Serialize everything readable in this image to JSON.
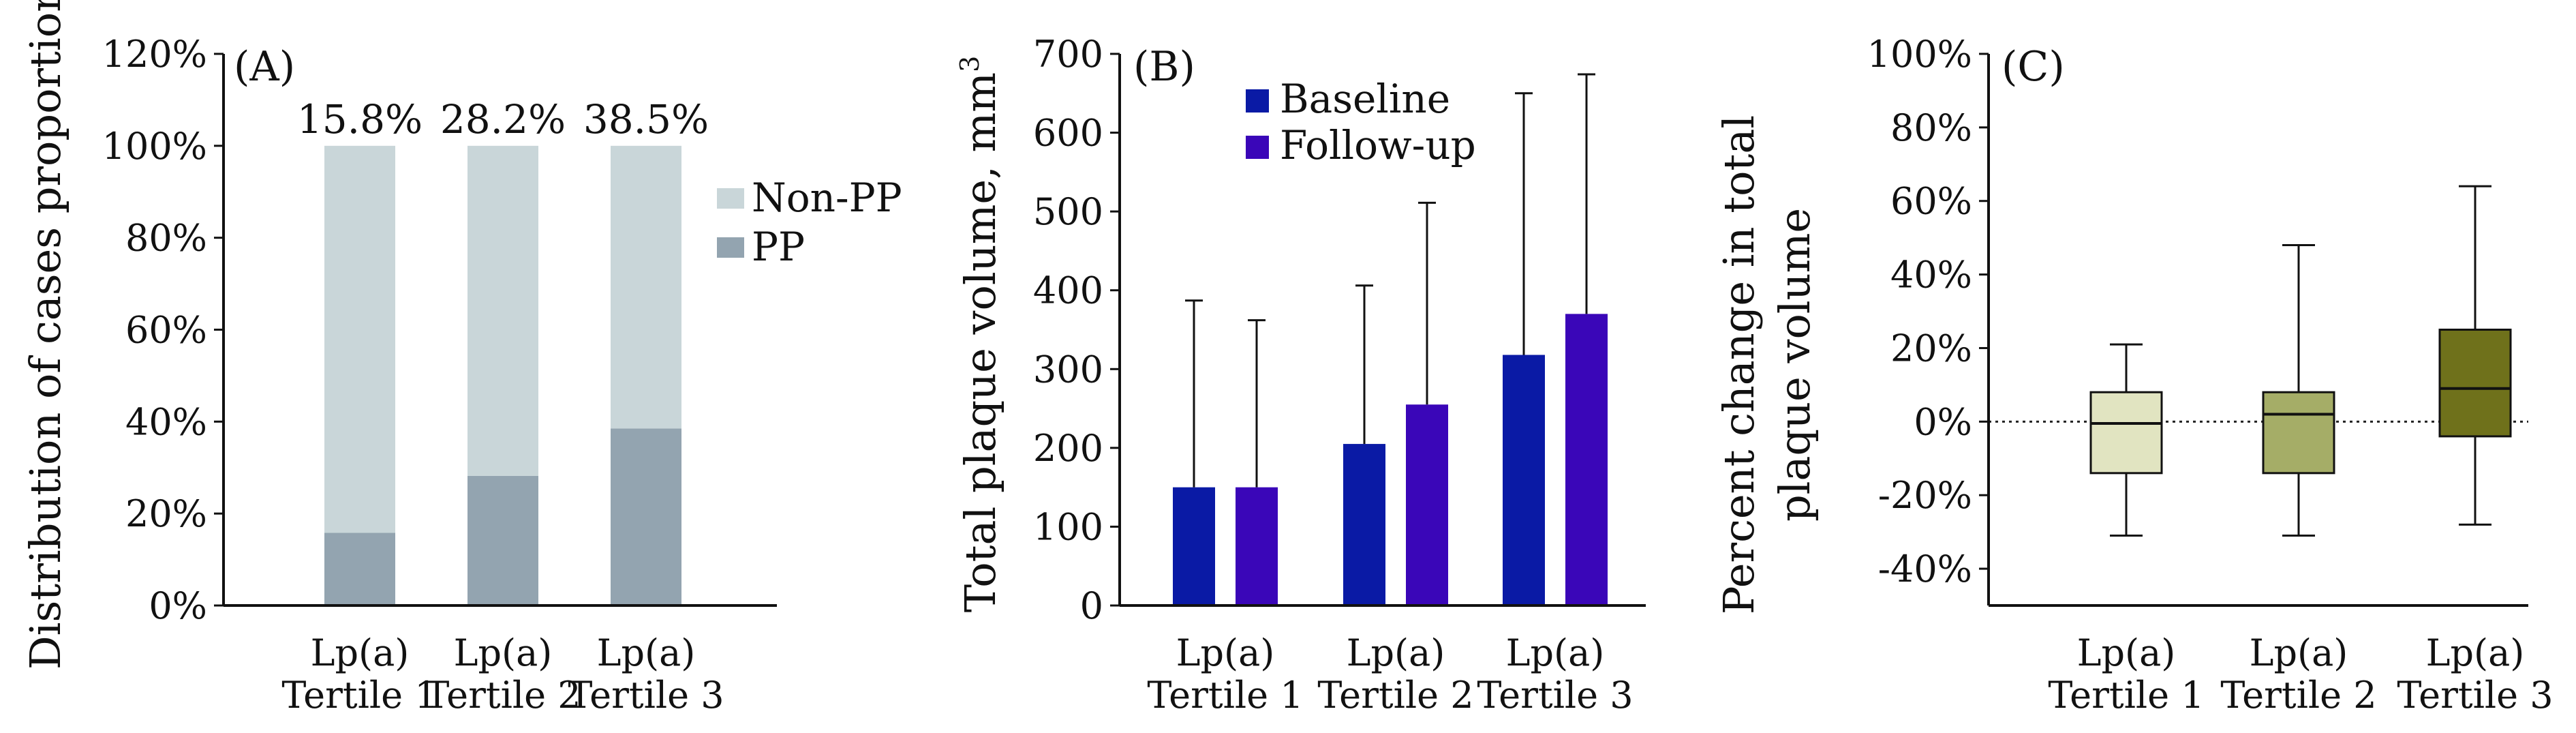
{
  "figure": {
    "panels": [
      {
        "id": "A",
        "tag": "(A)",
        "chart_data": {
          "type": "bar",
          "stacked": true,
          "ylabel": "Distribution of cases proportion",
          "ylim": [
            0,
            120
          ],
          "yticks": [
            "0%",
            "20%",
            "40%",
            "60%",
            "80%",
            "100%",
            "120%"
          ],
          "categories": [
            [
              "Lp(a)",
              "Tertile 1"
            ],
            [
              "Lp(a)",
              "Tertile 2"
            ],
            [
              "Lp(a)",
              "Tertile 3"
            ]
          ],
          "series": [
            {
              "name": "PP",
              "values": [
                15.8,
                28.2,
                38.5
              ],
              "color": "#93a4b0"
            },
            {
              "name": "Non-PP",
              "values": [
                84.2,
                71.8,
                61.5
              ],
              "color": "#c9d6d9"
            }
          ],
          "data_labels": [
            "15.8%",
            "28.2%",
            "38.5%"
          ],
          "legend": [
            "Non-PP",
            "PP"
          ],
          "legend_position": "right"
        }
      },
      {
        "id": "B",
        "tag": "(B)",
        "chart_data": {
          "type": "bar",
          "ylabel": "Total plaque volume, mm",
          "ylabel_superscript": "3",
          "ylim": [
            0,
            700
          ],
          "yticks": [
            "0",
            "100",
            "200",
            "300",
            "400",
            "500",
            "600",
            "700"
          ],
          "categories": [
            [
              "Lp(a)",
              "Tertile 1"
            ],
            [
              "Lp(a)",
              "Tertile 2"
            ],
            [
              "Lp(a)",
              "Tertile 3"
            ]
          ],
          "series": [
            {
              "name": "Baseline",
              "values": [
                150,
                205,
                318
              ],
              "error_upper": [
                387,
                406,
                650
              ],
              "color": "#0a1aa5"
            },
            {
              "name": "Follow-up",
              "values": [
                150,
                255,
                370
              ],
              "error_upper": [
                362,
                511,
                674
              ],
              "color": "#3a06b8"
            }
          ],
          "legend_position": "top-center"
        }
      },
      {
        "id": "C",
        "tag": "(C)",
        "chart_data": {
          "type": "box",
          "ylabel_lines": [
            "Percent change in total",
            "plaque volume"
          ],
          "ylim": [
            -50,
            100
          ],
          "yticks": [
            "-40%",
            "-20%",
            "0%",
            "20%",
            "40%",
            "60%",
            "80%",
            "100%"
          ],
          "ytick_values": [
            -40,
            -20,
            0,
            20,
            40,
            60,
            80,
            100
          ],
          "reference_line": 0,
          "categories": [
            [
              "Lp(a)",
              "Tertile 1"
            ],
            [
              "Lp(a)",
              "Tertile 2"
            ],
            [
              "Lp(a)",
              "Tertile 3"
            ]
          ],
          "boxes": [
            {
              "min": -31,
              "q1": -14,
              "median": -0.5,
              "q3": 8,
              "max": 21,
              "color": "#e1e4c1"
            },
            {
              "min": -31,
              "q1": -14,
              "median": 2,
              "q3": 8,
              "max": 48,
              "color": "#a5ad67"
            },
            {
              "min": -28,
              "q1": -4,
              "median": 9,
              "q3": 25,
              "max": 64,
              "color": "#6f711b"
            }
          ]
        }
      }
    ]
  }
}
